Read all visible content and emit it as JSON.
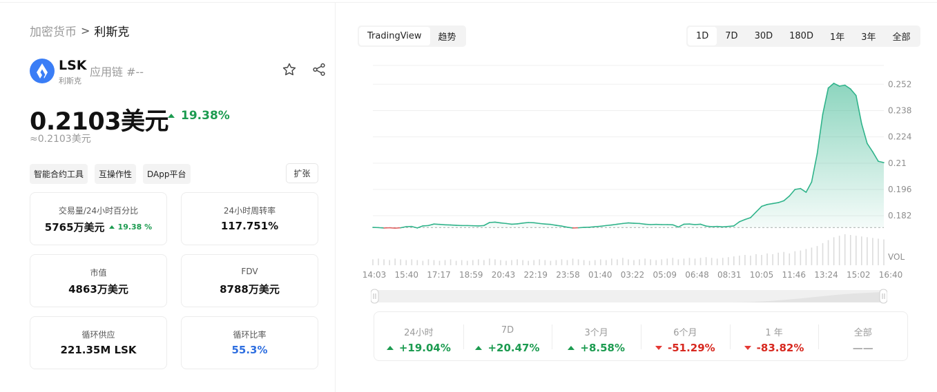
{
  "breadcrumb": {
    "parent": "加密货币",
    "separator": ">",
    "current": "利斯克"
  },
  "coin": {
    "symbol": "LSK",
    "name": "利斯克",
    "tag": "应用链 #--",
    "logo_color": "#3a7df6"
  },
  "price": {
    "value": "0.2103美元",
    "change": "19.38%",
    "approx": "≈0.2103美元"
  },
  "tags": [
    "智能合约工具",
    "互操作性",
    "DApp平台"
  ],
  "expand_label": "扩张",
  "stats": [
    {
      "label": "交易量/24小时百分比",
      "value": "5765万美元",
      "sub": "19.38 %"
    },
    {
      "label": "24小时周转率",
      "value": "117.751%"
    },
    {
      "label": "市值",
      "value": "4863万美元"
    },
    {
      "label": "FDV",
      "value": "8788万美元"
    },
    {
      "label": "循环供应",
      "value": "221.35M LSK"
    },
    {
      "label": "循环比率",
      "value": "55.3%"
    }
  ],
  "view_options": [
    {
      "label": "TradingView",
      "active": true
    },
    {
      "label": "趋势",
      "active": false
    }
  ],
  "range_options": [
    {
      "label": "1D",
      "active": true
    },
    {
      "label": "7D"
    },
    {
      "label": "30D"
    },
    {
      "label": "180D"
    },
    {
      "label": "1年"
    },
    {
      "label": "3年"
    },
    {
      "label": "全部"
    }
  ],
  "colors": {
    "up": "#1c9b50",
    "down": "#e53935",
    "line": "#2fb38a",
    "blue": "#2f6fe0"
  },
  "chart_data": {
    "type": "area",
    "y_ticks": [
      "0.252",
      "0.238",
      "0.224",
      "0.21",
      "0.196",
      "0.182"
    ],
    "y_tick_values": [
      0.252,
      0.238,
      0.224,
      0.21,
      0.196,
      0.182
    ],
    "volume_label": "VOL",
    "x_labels": [
      "14:03",
      "15:40",
      "17:17",
      "18:59",
      "20:43",
      "22:19",
      "23:58",
      "01:40",
      "03:22",
      "05:09",
      "06:48",
      "08:31",
      "10:05",
      "11:46",
      "13:24",
      "15:02",
      "16:40"
    ],
    "ylim": [
      0.174,
      0.262
    ],
    "baseline": 0.1757,
    "values": [
      0.1758,
      0.1757,
      0.1755,
      0.1756,
      0.1754,
      0.1756,
      0.1762,
      0.1763,
      0.1755,
      0.1766,
      0.1768,
      0.1776,
      0.1774,
      0.1772,
      0.1771,
      0.1769,
      0.1768,
      0.1768,
      0.1767,
      0.1766,
      0.1768,
      0.1784,
      0.1786,
      0.1782,
      0.1779,
      0.1775,
      0.1777,
      0.1781,
      0.1784,
      0.1783,
      0.1779,
      0.1776,
      0.1774,
      0.1769,
      0.1765,
      0.1759,
      0.1755,
      0.1756,
      0.1758,
      0.1759,
      0.1762,
      0.1764,
      0.1768,
      0.1771,
      0.1775,
      0.1779,
      0.1782,
      0.178,
      0.1779,
      0.1775,
      0.1773,
      0.1774,
      0.1773,
      0.1773,
      0.1772,
      0.176,
      0.1775,
      0.1776,
      0.1773,
      0.1775,
      0.1765,
      0.1762,
      0.1763,
      0.1761,
      0.1763,
      0.1766,
      0.1788,
      0.18,
      0.181,
      0.184,
      0.187,
      0.188,
      0.1885,
      0.189,
      0.19,
      0.1925,
      0.196,
      0.1965,
      0.1945,
      0.2,
      0.215,
      0.236,
      0.25,
      0.2525,
      0.251,
      0.2515,
      0.2495,
      0.246,
      0.231,
      0.2205,
      0.216,
      0.211,
      0.2103
    ],
    "volume": [
      8,
      9,
      8,
      7,
      9,
      8,
      7,
      8,
      7,
      6,
      8,
      7,
      6,
      7,
      8,
      6,
      7,
      6,
      7,
      8,
      7,
      9,
      8,
      7,
      6,
      7,
      8,
      7,
      6,
      7,
      8,
      7,
      6,
      7,
      8,
      7,
      9,
      8,
      7,
      6,
      7,
      8,
      7,
      9,
      8,
      10,
      8,
      7,
      8,
      9,
      8,
      7,
      8,
      9,
      10,
      8,
      9,
      10,
      9,
      10,
      11,
      10,
      9,
      10,
      11,
      12,
      13,
      14,
      13,
      15,
      14,
      16,
      15,
      17,
      18,
      16,
      19,
      20,
      22,
      24,
      26,
      30,
      34,
      38,
      40,
      42,
      41,
      40,
      39,
      38,
      37,
      36,
      35
    ]
  },
  "performance": [
    {
      "label": "24小时",
      "value": "+19.04%",
      "dir": "up"
    },
    {
      "label": "7D",
      "value": "+20.47%",
      "dir": "up"
    },
    {
      "label": "3个月",
      "value": "+8.58%",
      "dir": "up"
    },
    {
      "label": "6个月",
      "value": "-51.29%",
      "dir": "down"
    },
    {
      "label": "1 年",
      "value": "-83.82%",
      "dir": "down"
    },
    {
      "label": "全部",
      "value": "——",
      "dir": "none"
    }
  ]
}
